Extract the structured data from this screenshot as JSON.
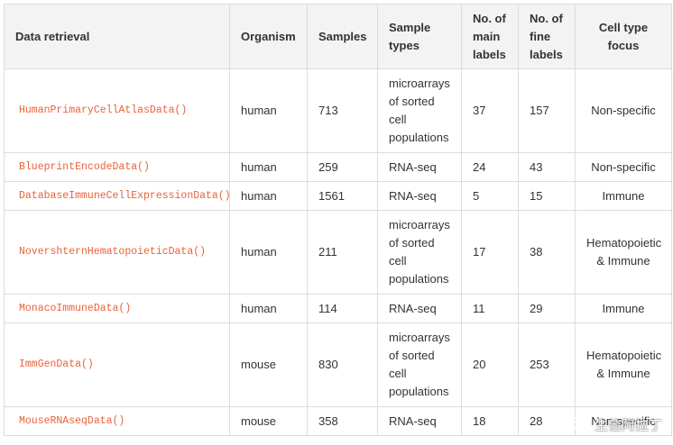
{
  "table": {
    "headers": [
      "Data retrieval",
      "Organism",
      "Samples",
      "Sample types",
      "No. of main labels",
      "No. of fine labels",
      "Cell type focus"
    ],
    "rows": [
      {
        "data_retrieval": "HumanPrimaryCellAtlasData()",
        "organism": "human",
        "samples": "713",
        "sample_types": "microarrays of sorted cell populations",
        "main_labels": "37",
        "fine_labels": "157",
        "cell_type_focus": "Non-specific"
      },
      {
        "data_retrieval": "BlueprintEncodeData()",
        "organism": "human",
        "samples": "259",
        "sample_types": "RNA-seq",
        "main_labels": "24",
        "fine_labels": "43",
        "cell_type_focus": "Non-specific"
      },
      {
        "data_retrieval": "DatabaseImmuneCellExpressionData()",
        "organism": "human",
        "samples": "1561",
        "sample_types": "RNA-seq",
        "main_labels": "5",
        "fine_labels": "15",
        "cell_type_focus": "Immune"
      },
      {
        "data_retrieval": "NovershternHematopoieticData()",
        "organism": "human",
        "samples": "211",
        "sample_types": "microarrays of sorted cell populations",
        "main_labels": "17",
        "fine_labels": "38",
        "cell_type_focus": "Hematopoietic & Immune"
      },
      {
        "data_retrieval": "MonacoImmuneData()",
        "organism": "human",
        "samples": "114",
        "sample_types": "RNA-seq",
        "main_labels": "11",
        "fine_labels": "29",
        "cell_type_focus": "Immune"
      },
      {
        "data_retrieval": "ImmGenData()",
        "organism": "mouse",
        "samples": "830",
        "sample_types": "microarrays of sorted cell populations",
        "main_labels": "20",
        "fine_labels": "253",
        "cell_type_focus": "Hematopoietic & Immune"
      },
      {
        "data_retrieval": "MouseRNAseqData()",
        "organism": "mouse",
        "samples": "358",
        "sample_types": "RNA-seq",
        "main_labels": "18",
        "fine_labels": "28",
        "cell_type_focus": "Non-specific"
      }
    ]
  },
  "watermark": {
    "icon": "wechat-icon",
    "text": "生信阿拉丁"
  },
  "colors": {
    "function_name": "#e8623c",
    "header_bg": "#f3f3f3",
    "border": "#dddddd",
    "text": "#333333"
  }
}
